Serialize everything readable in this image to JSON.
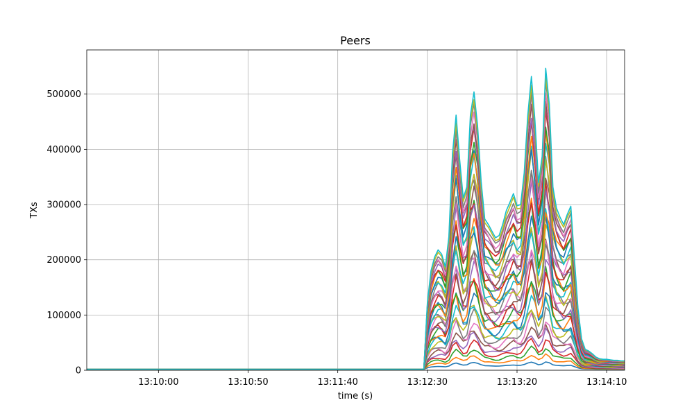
{
  "chart_data": {
    "type": "line",
    "title": "Peers",
    "xlabel": "time (s)",
    "ylabel": "TXs",
    "x_unit": "seconds",
    "xlim": [
      "13:09:20",
      "13:14:20"
    ],
    "ylim": [
      0,
      580000
    ],
    "x_ticks": [
      "13:10:00",
      "13:10:50",
      "13:11:40",
      "13:12:30",
      "13:13:20",
      "13:14:10"
    ],
    "y_ticks": [
      0,
      100000,
      200000,
      300000,
      400000,
      500000
    ],
    "grid": true,
    "legend": "none",
    "stacked": true,
    "series_count": 40,
    "palette": [
      "#1f77b4",
      "#ff7f0e",
      "#2ca02c",
      "#d62728",
      "#9467bd",
      "#8c564b",
      "#e377c2",
      "#7f7f7f",
      "#bcbd22",
      "#17becf"
    ],
    "envelope": {
      "x": [
        "13:09:20",
        "13:12:26",
        "13:12:28",
        "13:12:30",
        "13:12:32",
        "13:12:34",
        "13:12:36",
        "13:12:38",
        "13:12:40",
        "13:12:42",
        "13:12:44",
        "13:12:46",
        "13:12:48",
        "13:12:50",
        "13:12:52",
        "13:12:54",
        "13:12:56",
        "13:12:58",
        "13:13:00",
        "13:13:02",
        "13:13:04",
        "13:13:06",
        "13:13:08",
        "13:13:10",
        "13:13:12",
        "13:13:14",
        "13:13:16",
        "13:13:18",
        "13:13:20",
        "13:13:22",
        "13:13:24",
        "13:13:26",
        "13:13:28",
        "13:13:30",
        "13:13:32",
        "13:13:34",
        "13:13:36",
        "13:13:38",
        "13:13:40",
        "13:13:42",
        "13:13:44",
        "13:13:46",
        "13:13:48",
        "13:13:50",
        "13:13:52",
        "13:13:54",
        "13:13:56",
        "13:13:58",
        "13:14:00",
        "13:14:02",
        "13:14:04",
        "13:14:06",
        "13:14:08",
        "13:14:10",
        "13:14:12",
        "13:14:14",
        "13:14:16",
        "13:14:18",
        "13:14:20"
      ],
      "y": [
        0,
        0,
        0,
        120000,
        178000,
        203000,
        216000,
        208000,
        185000,
        240000,
        390000,
        460000,
        380000,
        310000,
        330000,
        460000,
        502000,
        440000,
        340000,
        272000,
        262000,
        250000,
        238000,
        242000,
        262000,
        287000,
        302000,
        318000,
        296000,
        298000,
        355000,
        460000,
        530000,
        450000,
        338000,
        385000,
        545000,
        480000,
        330000,
        292000,
        275000,
        262000,
        280000,
        295000,
        200000,
        110000,
        55000,
        36000,
        33000,
        28000,
        22000,
        19000,
        18000,
        18000,
        17000,
        16000,
        16000,
        15000,
        15000
      ]
    }
  }
}
